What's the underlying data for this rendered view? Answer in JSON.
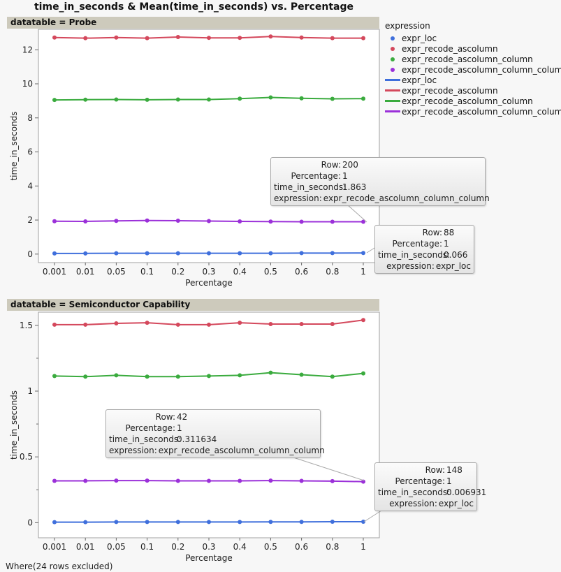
{
  "title": "time_in_seconds & Mean(time_in_seconds) vs. Percentage",
  "footer": "Where(24 rows excluded)",
  "legend": {
    "title": "expression",
    "items": [
      {
        "label": "expr_loc",
        "kind": "marker",
        "color": "#3f6fdc"
      },
      {
        "label": "expr_recode_ascolumn",
        "kind": "marker",
        "color": "#d4485c"
      },
      {
        "label": "expr_recode_ascolumn_column",
        "kind": "marker",
        "color": "#3aab3e"
      },
      {
        "label": "expr_recode_ascolumn_column_column",
        "kind": "marker",
        "color": "#9b30d9"
      },
      {
        "label": "expr_loc",
        "kind": "line",
        "color": "#3f6fdc"
      },
      {
        "label": "expr_recode_ascolumn",
        "kind": "line",
        "color": "#d4485c"
      },
      {
        "label": "expr_recode_ascolumn_column",
        "kind": "line",
        "color": "#3aab3e"
      },
      {
        "label": "expr_recode_ascolumn_column_column",
        "kind": "line",
        "color": "#9b30d9"
      }
    ]
  },
  "chart_data": [
    {
      "type": "line",
      "panel_title": "datatable = Probe",
      "xlabel": "Percentage",
      "ylabel": "time_in_seconds",
      "categories": [
        "0.001",
        "0.01",
        "0.05",
        "0.1",
        "0.2",
        "0.3",
        "0.4",
        "0.5",
        "0.6",
        "0.8",
        "1"
      ],
      "ylim": [
        -0.5,
        13.2
      ],
      "yticks": [
        0,
        2,
        4,
        6,
        8,
        10,
        12
      ],
      "series": [
        {
          "name": "expr_loc",
          "color": "#3f6fdc",
          "values": [
            0.04,
            0.04,
            0.05,
            0.05,
            0.05,
            0.05,
            0.05,
            0.05,
            0.06,
            0.06,
            0.066
          ]
        },
        {
          "name": "expr_recode_ascolumn",
          "color": "#d4485c",
          "values": [
            12.72,
            12.68,
            12.72,
            12.68,
            12.75,
            12.7,
            12.7,
            12.78,
            12.72,
            12.68,
            12.68
          ]
        },
        {
          "name": "expr_recode_ascolumn_column",
          "color": "#3aab3e",
          "values": [
            9.05,
            9.07,
            9.08,
            9.06,
            9.08,
            9.08,
            9.13,
            9.2,
            9.15,
            9.12,
            9.13
          ]
        },
        {
          "name": "expr_recode_ascolumn_column_column",
          "color": "#9b30d9",
          "values": [
            1.93,
            1.92,
            1.95,
            1.97,
            1.96,
            1.94,
            1.92,
            1.91,
            1.9,
            1.9,
            1.9
          ]
        }
      ],
      "tooltips": [
        {
          "row": "200",
          "percentage": "1",
          "time_in_seconds": "1.863",
          "expression": "expr_recode_ascolumn_column_column"
        },
        {
          "row": "88",
          "percentage": "1",
          "time_in_seconds": "0.066",
          "expression": "expr_loc"
        }
      ]
    },
    {
      "type": "line",
      "panel_title": "datatable = Semiconductor Capability",
      "xlabel": "Percentage",
      "ylabel": "time_in_seconds",
      "categories": [
        "0.001",
        "0.01",
        "0.05",
        "0.1",
        "0.2",
        "0.3",
        "0.4",
        "0.5",
        "0.6",
        "0.8",
        "1"
      ],
      "ylim": [
        -0.115,
        1.6
      ],
      "yticks": [
        0,
        0.5,
        1,
        1.5
      ],
      "series": [
        {
          "name": "expr_loc",
          "color": "#3f6fdc",
          "values": [
            0.004,
            0.004,
            0.005,
            0.005,
            0.005,
            0.005,
            0.005,
            0.006,
            0.006,
            0.007,
            0.006931
          ]
        },
        {
          "name": "expr_recode_ascolumn",
          "color": "#d4485c",
          "values": [
            1.505,
            1.505,
            1.515,
            1.52,
            1.505,
            1.505,
            1.52,
            1.51,
            1.51,
            1.51,
            1.54
          ]
        },
        {
          "name": "expr_recode_ascolumn_column",
          "color": "#3aab3e",
          "values": [
            1.115,
            1.11,
            1.12,
            1.11,
            1.11,
            1.115,
            1.12,
            1.14,
            1.125,
            1.11,
            1.135
          ]
        },
        {
          "name": "expr_recode_ascolumn_column_column",
          "color": "#9b30d9",
          "values": [
            0.318,
            0.318,
            0.32,
            0.32,
            0.318,
            0.318,
            0.318,
            0.32,
            0.318,
            0.316,
            0.311634
          ]
        }
      ],
      "tooltips": [
        {
          "row": "42",
          "percentage": "1",
          "time_in_seconds": "0.311634",
          "expression": "expr_recode_ascolumn_column_column"
        },
        {
          "row": "148",
          "percentage": "1",
          "time_in_seconds": "0.006931",
          "expression": "expr_loc"
        }
      ]
    }
  ],
  "tooltip_keys": {
    "row": "Row:",
    "percentage": "Percentage:",
    "time_in_seconds": "time_in_seconds:",
    "expression": "expression:"
  }
}
